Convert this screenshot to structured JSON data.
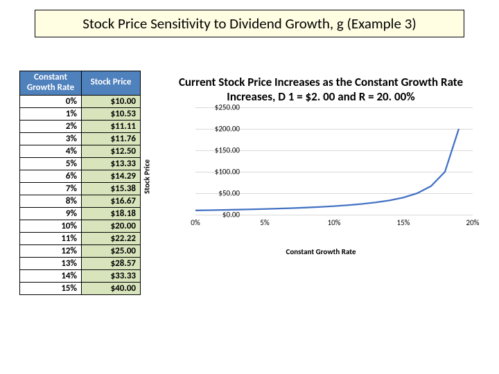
{
  "title": "Stock Price Sensitivity to Dividend Growth, g (Example 3)",
  "table": {
    "headers": {
      "growth": "Constant Growth Rate",
      "price": "Stock Price"
    },
    "rows": [
      {
        "g": "0%",
        "p": "$10.00"
      },
      {
        "g": "1%",
        "p": "$10.53"
      },
      {
        "g": "2%",
        "p": "$11.11"
      },
      {
        "g": "3%",
        "p": "$11.76"
      },
      {
        "g": "4%",
        "p": "$12.50"
      },
      {
        "g": "5%",
        "p": "$13.33"
      },
      {
        "g": "6%",
        "p": "$14.29"
      },
      {
        "g": "7%",
        "p": "$15.38"
      },
      {
        "g": "8%",
        "p": "$16.67"
      },
      {
        "g": "9%",
        "p": "$18.18"
      },
      {
        "g": "10%",
        "p": "$20.00"
      },
      {
        "g": "11%",
        "p": "$22.22"
      },
      {
        "g": "12%",
        "p": "$25.00"
      },
      {
        "g": "13%",
        "p": "$28.57"
      },
      {
        "g": "14%",
        "p": "$33.33"
      },
      {
        "g": "15%",
        "p": "$40.00"
      }
    ]
  },
  "chart": {
    "type": "line",
    "title": "Current Stock Price Increases as the Constant Growth Rate Increases, D 1 = $2. 00 and R = 20. 00%",
    "xlabel": "Constant Growth Rate",
    "ylabel": "Stock Price",
    "xlim": [
      0,
      20
    ],
    "ylim": [
      0,
      250
    ],
    "xtick_step": 5,
    "ytick_step": 50,
    "xticks": [
      "0%",
      "5%",
      "10%",
      "15%",
      "20%"
    ],
    "yticks": [
      "$0.00",
      "$50.00",
      "$100.00",
      "$150.00",
      "$200.00",
      "$250.00"
    ],
    "line_color": "#4472c4",
    "line_width": 2.3,
    "grid_color": "#d9d9d9",
    "background_color": "#ffffff",
    "title_fontsize": 17,
    "label_fontsize": 11,
    "tick_fontsize": 11,
    "series": {
      "x": [
        0,
        1,
        2,
        3,
        4,
        5,
        6,
        7,
        8,
        9,
        10,
        11,
        12,
        13,
        14,
        15,
        16,
        17,
        18,
        19
      ],
      "y": [
        10.0,
        10.53,
        11.11,
        11.76,
        12.5,
        13.33,
        14.29,
        15.38,
        16.67,
        18.18,
        20.0,
        22.22,
        25.0,
        28.57,
        33.33,
        40.0,
        50.0,
        66.67,
        100.0,
        200.0
      ]
    }
  }
}
